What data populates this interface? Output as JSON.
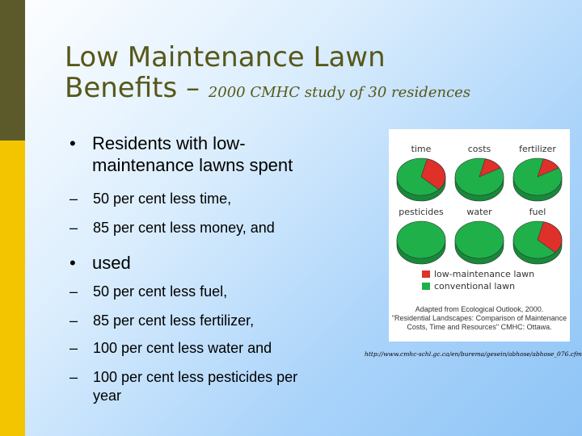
{
  "slide": {
    "title_line1": "Low Maintenance Lawn",
    "title_line2": "Benefits –",
    "title_sub": "2000 CMHC study of 30 residences",
    "bullets": {
      "b1_line1": "Residents with low-",
      "b1_line2": "maintenance lawns spent",
      "s1": "50 per cent less time,",
      "s2": "85 per cent less money, and",
      "b2": "used",
      "s3": "50 per cent less fuel,",
      "s4": "85 per cent less fertilizer,",
      "s5": "100 per cent less water and",
      "s6_line1": "100 per cent less pesticides per",
      "s6_line2": "year"
    },
    "bullet_symbol": "•",
    "dash_symbol": "–",
    "url": "http://www.cmhc-schl.gc.ca/en/burema/gesein/abhose/abhose_076.cfm"
  },
  "figure": {
    "legend": {
      "low": "low-maintenance lawn",
      "conventional": "conventional lawn"
    },
    "credit_line1": "Adapted from Ecological Outlook, 2000.",
    "credit_line2": "\"Residential Landscapes: Comparison of Maintenance",
    "credit_line3": "Costs, Time and Resources\" CMHC: Ottawa."
  },
  "chart_data": {
    "type": "pie",
    "colors": {
      "low": "#e0302a",
      "conventional": "#1fb04a"
    },
    "series_labels": [
      "low-maintenance lawn",
      "conventional lawn"
    ],
    "pies": [
      {
        "label": "time",
        "low_share": 0.33
      },
      {
        "label": "costs",
        "low_share": 0.13
      },
      {
        "label": "fertilizer",
        "low_share": 0.13
      },
      {
        "label": "pesticides",
        "low_share": 0.0
      },
      {
        "label": "water",
        "low_share": 0.0
      },
      {
        "label": "fuel",
        "low_share": 0.33
      }
    ]
  }
}
